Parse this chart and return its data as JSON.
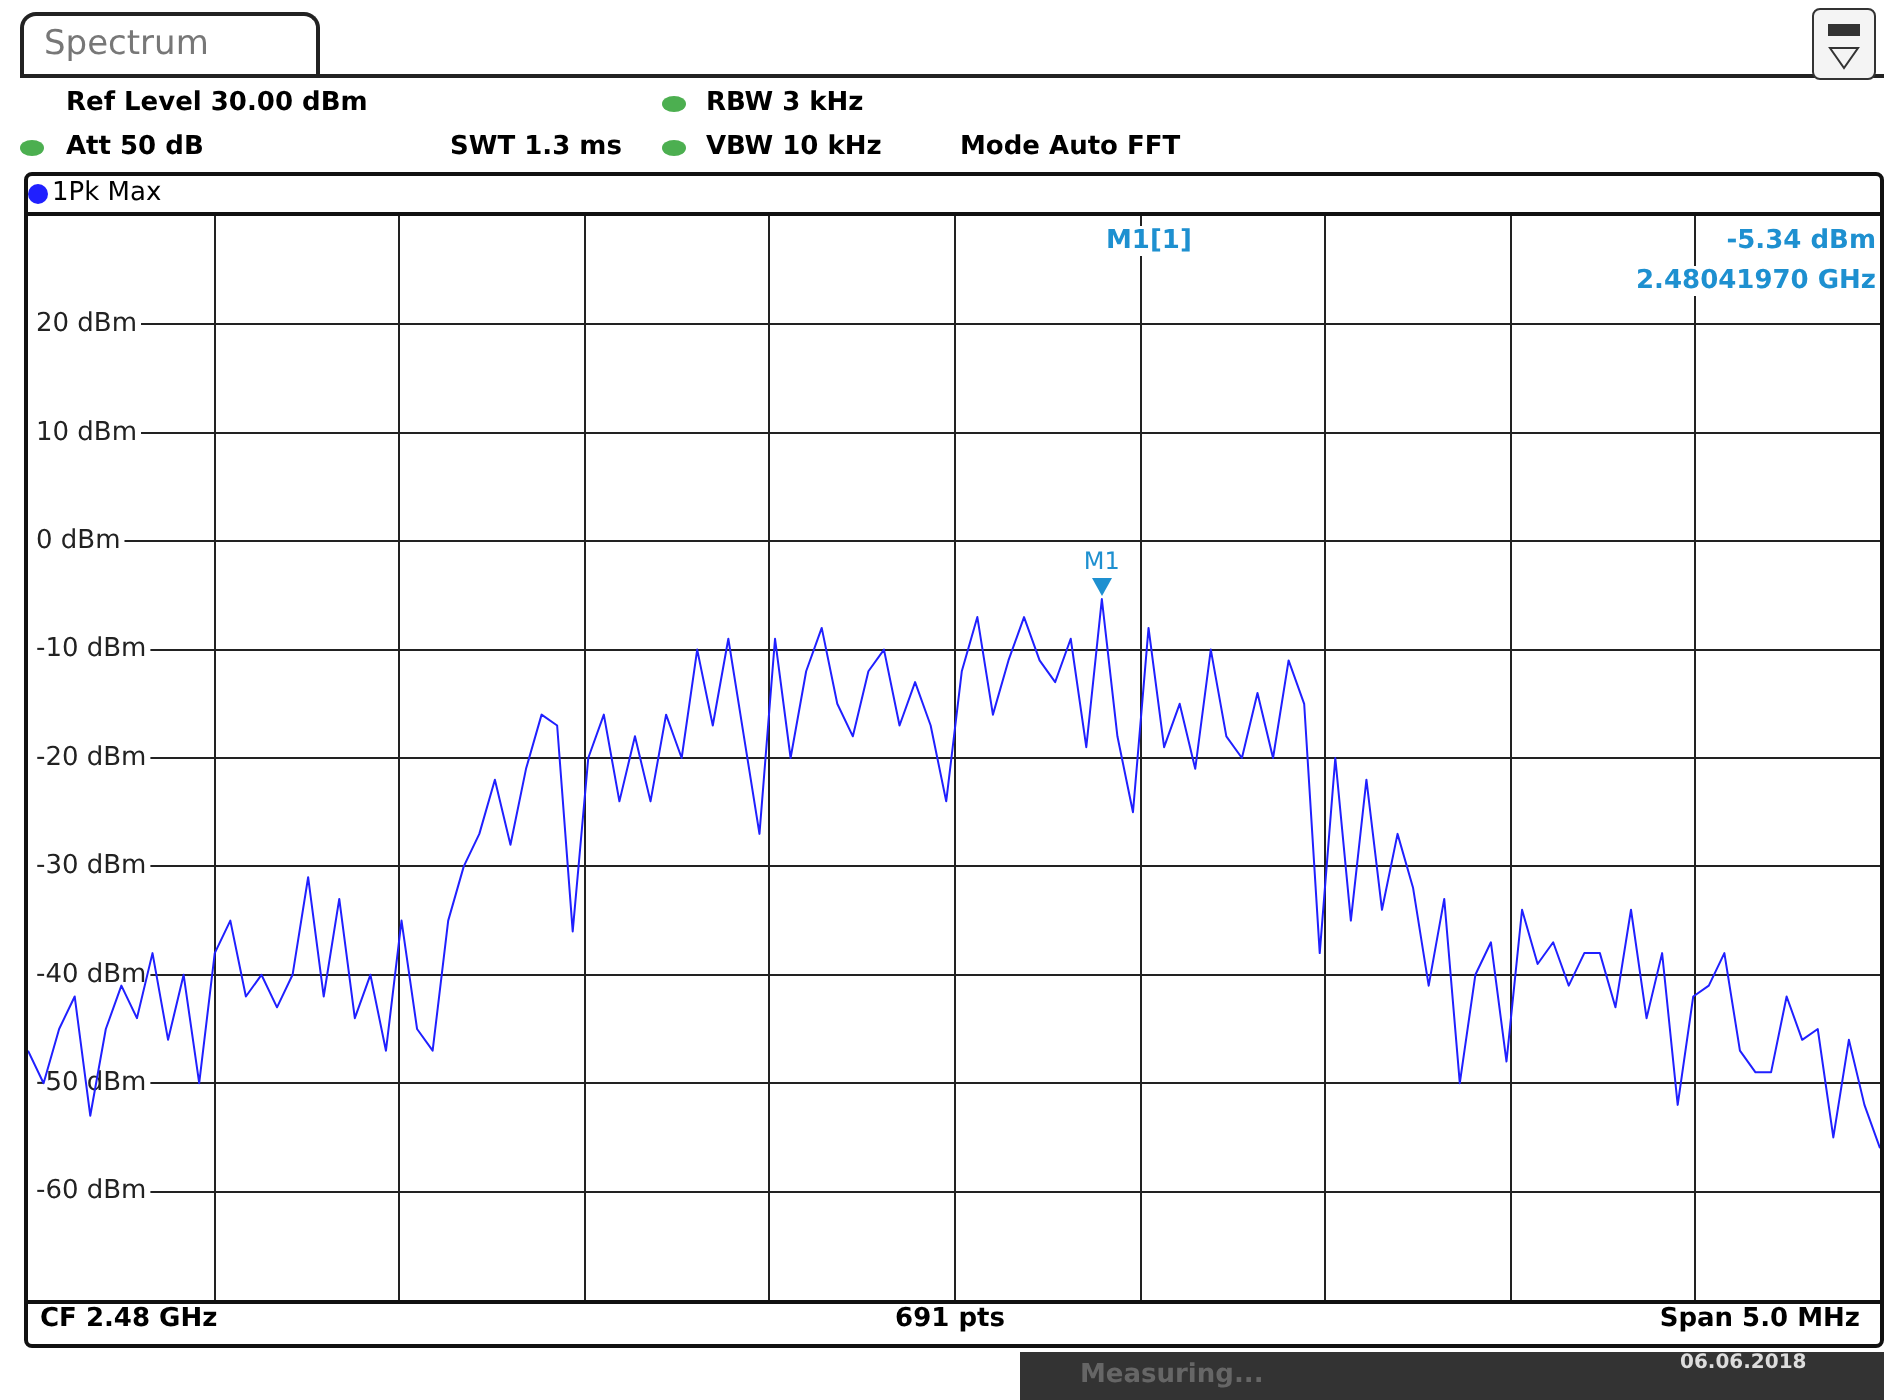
{
  "chart_data": {
    "type": "line",
    "title": "Spectrum",
    "categories": [
      null,
      null,
      null,
      null,
      null,
      null,
      null,
      null,
      null,
      null,
      null,
      null,
      null,
      null,
      null,
      null,
      null,
      null,
      null,
      null,
      null,
      null,
      null,
      null,
      null,
      null,
      null,
      null,
      null,
      null,
      null,
      null,
      null,
      null,
      null,
      null,
      null,
      null,
      null,
      null,
      null,
      null,
      null,
      null,
      null,
      null,
      null,
      null,
      null,
      null,
      null,
      null,
      null,
      null,
      null,
      null,
      null,
      null,
      null,
      null,
      null,
      null,
      null,
      null,
      null,
      null,
      null,
      null,
      null,
      null,
      null,
      null,
      null,
      null,
      null,
      null,
      null,
      null,
      null,
      null,
      null,
      null,
      null,
      null,
      null,
      null,
      null,
      null,
      null,
      null,
      null,
      null,
      null,
      null,
      null,
      null,
      null,
      null,
      null,
      null,
      null,
      null,
      null,
      null,
      null,
      null,
      null,
      null,
      null,
      null,
      null,
      null,
      null,
      null,
      null,
      null,
      null,
      null,
      null,
      null
    ],
    "series": [
      {
        "name": "1Pk Max",
        "color": "#2020ff",
        "values": [
          -47,
          -50,
          -45,
          -42,
          -53,
          -45,
          -41,
          -44,
          -38,
          -46,
          -40,
          -50,
          -38,
          -35,
          -42,
          -40,
          -43,
          -40,
          -31,
          -42,
          -33,
          -44,
          -40,
          -47,
          -35,
          -45,
          -47,
          -35,
          -30,
          -27,
          -22,
          -28,
          -21,
          -16,
          -17,
          -36,
          -20,
          -16,
          -24,
          -18,
          -24,
          -16,
          -20,
          -10,
          -17,
          -9,
          -18,
          -27,
          -9,
          -20,
          -12,
          -8,
          -15,
          -18,
          -12,
          -10,
          -17,
          -13,
          -17,
          -24,
          -12,
          -7,
          -16,
          -11,
          -7,
          -11,
          -13,
          -9,
          -19,
          -5.34,
          -18,
          -25,
          -8,
          -19,
          -15,
          -21,
          -10,
          -18,
          -20,
          -14,
          -20,
          -11,
          -15,
          -38,
          -20,
          -35,
          -22,
          -34,
          -27,
          -32,
          -41,
          -33,
          -50,
          -40,
          -37,
          -48,
          -34,
          -39,
          -37,
          -41,
          -38,
          -38,
          -43,
          -34,
          -44,
          -38,
          -52,
          -42,
          -41,
          -38,
          -47,
          -49,
          -49,
          -42,
          -46,
          -45,
          -55,
          -46,
          -52,
          -56
        ]
      }
    ],
    "ylim": [
      -70,
      30
    ],
    "yticks": [
      {
        "value": -60,
        "label": "-60 dBm"
      },
      {
        "value": -50,
        "label": "-50 dBm"
      },
      {
        "value": -40,
        "label": "-40 dBm"
      },
      {
        "value": -30,
        "label": "-30 dBm"
      },
      {
        "value": -20,
        "label": "-20 dBm"
      },
      {
        "value": -10,
        "label": "-10 dBm"
      },
      {
        "value": 0,
        "label": "0 dBm"
      },
      {
        "value": 10,
        "label": "10 dBm"
      },
      {
        "value": 20,
        "label": "20 dBm"
      }
    ],
    "tick_labels": "y",
    "grid": true,
    "legend": "top left",
    "annotations": [
      "Ref Level 30.00 dBm",
      "Att 50 dB",
      "SWT 1.3 ms",
      "RBW 3 kHz",
      "VBW 10 kHz",
      "Mode Auto FFT",
      "M1[1]",
      "-5.34 dBm",
      "2.48041970 GHz",
      "CF 2.48 GHz",
      "691 pts",
      "Span 5.0 MHz",
      "Measuring...",
      "06.06.2018",
      {
        "text": "M1",
        "y": -5.34
      }
    ]
  }
}
